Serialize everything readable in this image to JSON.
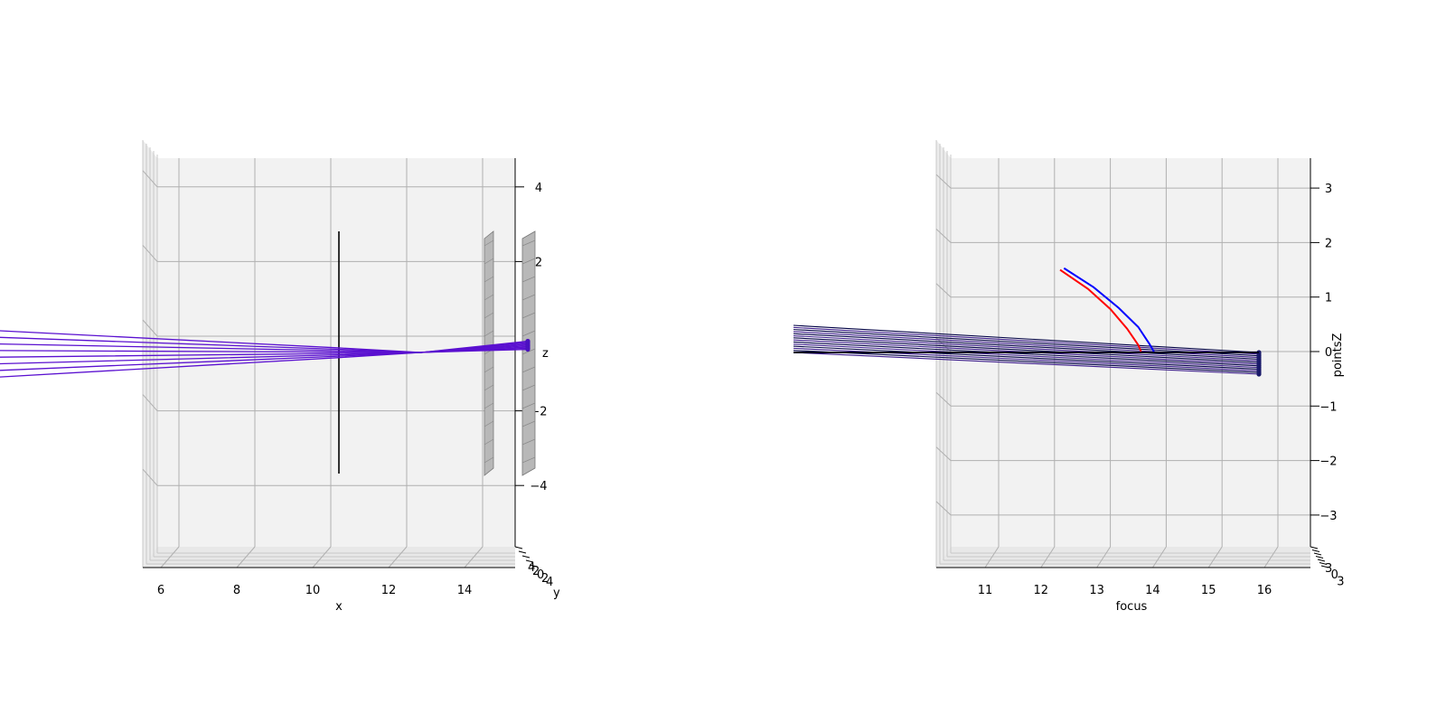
{
  "chart_data": [
    {
      "type": "line",
      "title": "",
      "view": "3d-side",
      "xlabel": "x",
      "ylabel": "y",
      "zlabel": "z",
      "x_ticks": [
        "6",
        "8",
        "10",
        "12",
        "14"
      ],
      "y_ticks": [
        "4",
        "2",
        "0",
        "2",
        "4"
      ],
      "z_ticks": [
        "4",
        "2",
        "0",
        "−2",
        "−4"
      ],
      "xlim": [
        5.5,
        15.5
      ],
      "zlim": [
        -5.3,
        5.3
      ],
      "lens_x": 10.7,
      "lens_half_height": 3.2,
      "screens": [
        {
          "x": 14.65,
          "half_height": 3.2
        },
        {
          "x": 15.4,
          "half_height": 3.2
        }
      ],
      "rays": {
        "count": 8,
        "start_x": 1.5,
        "start_z": [
          0.6,
          0.45,
          0.3,
          0.15,
          -0.05,
          -0.2,
          -0.35,
          -0.5
        ],
        "cross_x": 12.9,
        "end_x": 15.35,
        "end_z": [
          -0.15,
          -0.11,
          -0.07,
          -0.03,
          0.02,
          0.06,
          0.1,
          0.14
        ],
        "color": "#5a10d0"
      },
      "grid": true
    },
    {
      "type": "line",
      "title": "",
      "view": "3d-side",
      "xlabel": "focus",
      "ylabel": "",
      "zlabel": "pointsZ",
      "x_ticks": [
        "11",
        "12",
        "13",
        "14",
        "15",
        "16"
      ],
      "y_ticks": [
        "3",
        "2",
        "1",
        "0",
        "1",
        "2",
        "3"
      ],
      "z_ticks": [
        "3",
        "2",
        "1",
        "0",
        "−1",
        "−2",
        "−3"
      ],
      "xlim": [
        10.2,
        16.9
      ],
      "zlim": [
        -3.55,
        3.55
      ],
      "series": [
        {
          "color": "#ff0000",
          "points": [
            [
              12.1,
              1.5
            ],
            [
              12.6,
              1.15
            ],
            [
              13.0,
              0.78
            ],
            [
              13.3,
              0.42
            ],
            [
              13.5,
              0.12
            ],
            [
              13.55,
              0.0
            ]
          ]
        },
        {
          "color": "#0000ff",
          "points": [
            [
              12.17,
              1.53
            ],
            [
              12.7,
              1.18
            ],
            [
              13.15,
              0.8
            ],
            [
              13.5,
              0.45
            ],
            [
              13.7,
              0.14
            ],
            [
              13.78,
              0.0
            ]
          ]
        }
      ],
      "ray_bundle": {
        "count": 14,
        "start_x": 8.0,
        "start_z_top": 0.5,
        "start_z_bottom": 0.0,
        "end_x": 15.85,
        "end_z_top": 0.0,
        "end_z_bottom": -0.38
      },
      "grid": true
    }
  ]
}
